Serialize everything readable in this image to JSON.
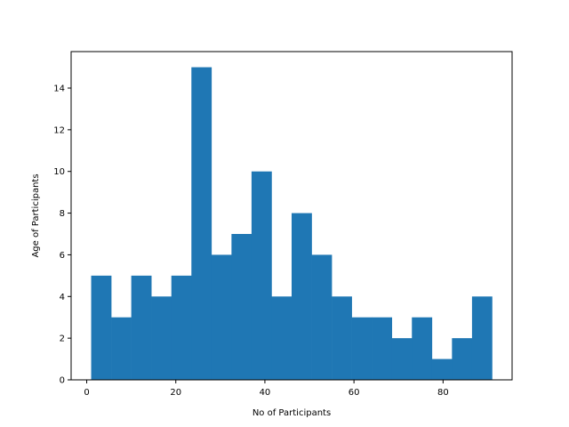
{
  "chart_data": {
    "type": "histogram",
    "title": "",
    "xlabel": "No of Participants",
    "ylabel": "Age of Participants",
    "xlim": [
      -3.5,
      95.5
    ],
    "ylim": [
      0,
      15.75
    ],
    "xticks": [
      0,
      20,
      40,
      60,
      80
    ],
    "yticks": [
      0,
      2,
      4,
      6,
      8,
      10,
      12,
      14
    ],
    "bin_edges": [
      1,
      5.5,
      10,
      14.5,
      19,
      23.5,
      28,
      32.5,
      37,
      41.5,
      46,
      50.5,
      55,
      59.5,
      64,
      68.5,
      73,
      77.5,
      82,
      86.5,
      91
    ],
    "counts": [
      5,
      3,
      5,
      4,
      5,
      15,
      6,
      7,
      10,
      4,
      8,
      6,
      4,
      3,
      3,
      2,
      3,
      1,
      2,
      4
    ],
    "bar_color": "#1f77b4",
    "grid": false,
    "legend": "none"
  }
}
